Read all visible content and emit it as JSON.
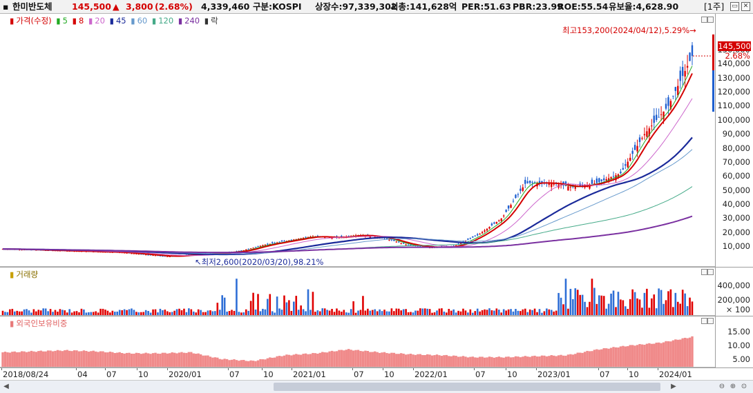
{
  "header": {
    "name": "한미반도체",
    "price": "145,500",
    "change_arrow": "▲",
    "change": "3,800",
    "change_pct": "(2.68%)",
    "volume": "4,339,460",
    "market": "구분:KOSPI",
    "shares": "상장수:97,339,302",
    "market_cap": "시총:141,628억",
    "per": "PER:51.63",
    "pbr": "PBR:23.99",
    "roe": "ROE:55.54",
    "float": "유보율:4,628.90",
    "period": "[1주]"
  },
  "price_pane": {
    "legend": [
      {
        "label": "가격(수정)",
        "color": "#d40000"
      },
      {
        "label": "5",
        "color": "#22aa22"
      },
      {
        "label": "8",
        "color": "#d40000"
      },
      {
        "label": "20",
        "color": "#cc66cc"
      },
      {
        "label": "45",
        "color": "#1a2a9a"
      },
      {
        "label": "60",
        "color": "#6699cc"
      },
      {
        "label": "120",
        "color": "#44aa88"
      },
      {
        "label": "240",
        "color": "#7a30a0"
      },
      {
        "label": "락",
        "color": "#333333"
      }
    ],
    "high_note": "최고153,200(2024/04/12),5.29%",
    "low_note": "최저2,600(2020/03/20),98.21%",
    "current_price_tag": "145,500",
    "current_pct_tag": "2.68%",
    "y_ticks": [
      "150,000",
      "140,000",
      "130,000",
      "120,000",
      "110,000",
      "100,000",
      "90,000",
      "80,000",
      "70,000",
      "60,000",
      "50,000",
      "40,000",
      "30,000",
      "20,000",
      "10,000"
    ]
  },
  "volume_pane": {
    "title": "거래량",
    "y_ticks": [
      "400,000",
      "200,000"
    ],
    "unit": "× 100"
  },
  "foreign_pane": {
    "title": "외국인보유비중",
    "y_ticks": [
      "15.00",
      "10.00",
      "5.00"
    ]
  },
  "x_axis": {
    "ticks": [
      "2018/08/24",
      "04",
      "07",
      "10",
      "2020/01",
      "07",
      "10",
      "2021/01",
      "07",
      "10",
      "2022/01",
      "07",
      "10",
      "2023/01",
      "07",
      "10",
      "2024/01"
    ]
  },
  "chart_data": [
    {
      "type": "candlestick",
      "title": "가격(수정)",
      "ylim": [
        0,
        160000
      ],
      "x": [
        "2018/08",
        "2018/11",
        "2019/02",
        "2019/05",
        "2019/08",
        "2019/11",
        "2020/02",
        "2020/03",
        "2020/05",
        "2020/08",
        "2020/11",
        "2021/02",
        "2021/05",
        "2021/08",
        "2021/11",
        "2022/02",
        "2022/05",
        "2022/08",
        "2022/11",
        "2023/02",
        "2023/04",
        "2023/06",
        "2023/07",
        "2023/08",
        "2023/10",
        "2023/12",
        "2024/01",
        "2024/02",
        "2024/03",
        "2024/04"
      ],
      "close": [
        8000,
        7500,
        7000,
        6500,
        6000,
        5500,
        4000,
        2600,
        4000,
        5000,
        6500,
        11000,
        14000,
        17000,
        16000,
        18000,
        16000,
        11000,
        9000,
        10000,
        18000,
        30000,
        55000,
        55000,
        52000,
        55000,
        62000,
        90000,
        110000,
        145500
      ],
      "annotations": [
        "최고153,200(2024/04/12),5.29%",
        "최저2,600(2020/03/20),98.21%"
      ]
    },
    {
      "type": "bar",
      "title": "거래량",
      "unit": "× 100",
      "ylim": [
        0,
        500000
      ]
    },
    {
      "type": "bar",
      "title": "외국인보유비중",
      "ylim": [
        0,
        20
      ],
      "x": [
        "2018/08",
        "2019/01",
        "2019/04",
        "2019/07",
        "2019/10",
        "2020/01",
        "2020/04",
        "2020/07",
        "2020/10",
        "2021/01",
        "2021/04",
        "2021/07",
        "2021/10",
        "2022/01",
        "2022/04",
        "2022/07",
        "2022/10",
        "2023/01",
        "2023/04",
        "2023/07",
        "2023/10",
        "2024/01",
        "2024/04"
      ],
      "values": [
        7.5,
        8,
        8.5,
        8,
        7,
        7,
        7.5,
        4,
        3,
        6,
        7,
        9,
        7.5,
        6.5,
        6,
        5,
        5,
        5.5,
        6,
        9,
        11,
        12.5,
        15.5
      ]
    }
  ]
}
